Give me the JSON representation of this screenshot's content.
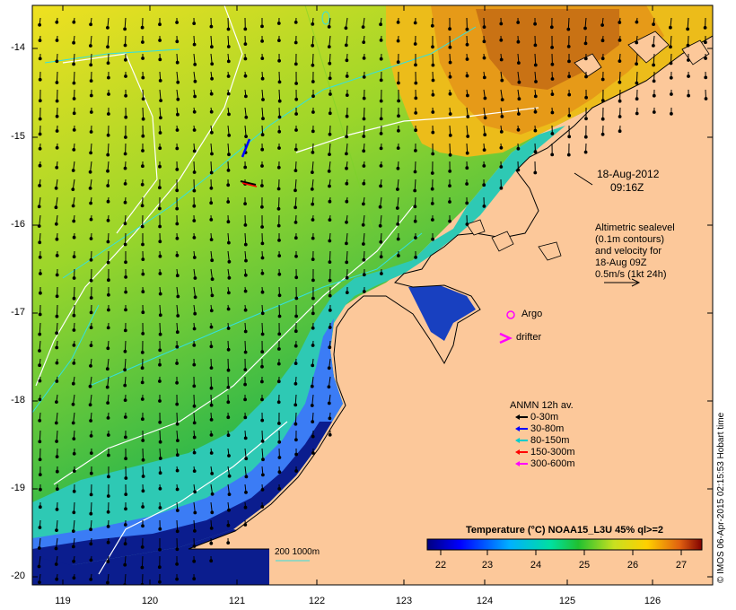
{
  "map": {
    "date_line1": "18-Aug-2012",
    "date_line2": "09:16Z",
    "altimetry_lines": [
      "Altimetric sealevel",
      "(0.1m contours)",
      "and velocity for",
      "18-Aug 09Z",
      "0.5m/s (1kt 24h)"
    ],
    "argo_label": "Argo",
    "drifter_label": "drifter",
    "scale_label": "200  1000m",
    "credit": "© IMOS 06-Apr-2015 02:15:53 Hobart time",
    "x_ticks": [
      "119",
      "120",
      "121",
      "122",
      "123",
      "124",
      "125",
      "126"
    ],
    "y_ticks": [
      "-14",
      "-15",
      "-16",
      "-17",
      "-18",
      "-19",
      "-20"
    ]
  },
  "legend": {
    "title": "ANMN 12h av.",
    "items": [
      {
        "label": "0-30m",
        "color": "#000000"
      },
      {
        "label": "30-80m",
        "color": "#0000ff"
      },
      {
        "label": "80-150m",
        "color": "#00cccc"
      },
      {
        "label": "150-300m",
        "color": "#ff0000"
      },
      {
        "label": "300-600m",
        "color": "#ff00ff"
      }
    ]
  },
  "colorbar": {
    "title": "Temperature (°C) NOAA15_L3U 45% ql>=2",
    "ticks": [
      "22",
      "23",
      "24",
      "25",
      "26",
      "27"
    ]
  },
  "colors": {
    "land": "#fcc89a",
    "ocean_deep": "#0a1a8c",
    "ocean_blue": "#3a7cff",
    "ocean_cyan": "#2bd2c8",
    "ocean_green": "#1fb64c",
    "ocean_lime": "#8ede2a",
    "ocean_yellow": "#f2e21e",
    "ocean_orange": "#e49616"
  }
}
